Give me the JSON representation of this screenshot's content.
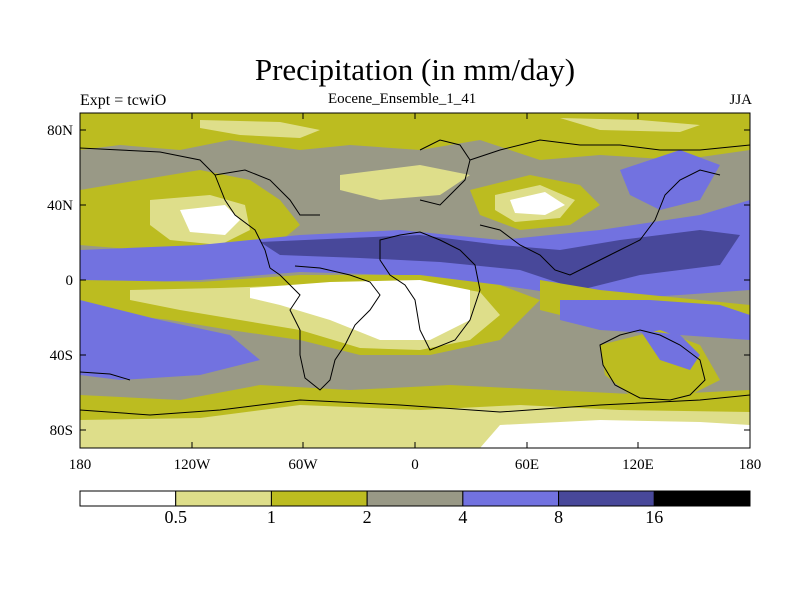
{
  "title": "Precipitation (in mm/day)",
  "left_string": "Expt = tcwiO",
  "center_string": "Eocene_Ensemble_1_41",
  "right_string": "JJA",
  "lat_labels": [
    "80N",
    "40N",
    "0",
    "40S",
    "80S"
  ],
  "lon_labels": [
    "180",
    "120W",
    "60W",
    "0",
    "60E",
    "120E",
    "180"
  ],
  "colorbar": {
    "colors": [
      "#ffffff",
      "#dede8a",
      "#bcbc20",
      "#999986",
      "#7272e0",
      "#48489a",
      "#000000"
    ],
    "labels": [
      "0.5",
      "1",
      "2",
      "4",
      "8",
      "16"
    ]
  }
}
